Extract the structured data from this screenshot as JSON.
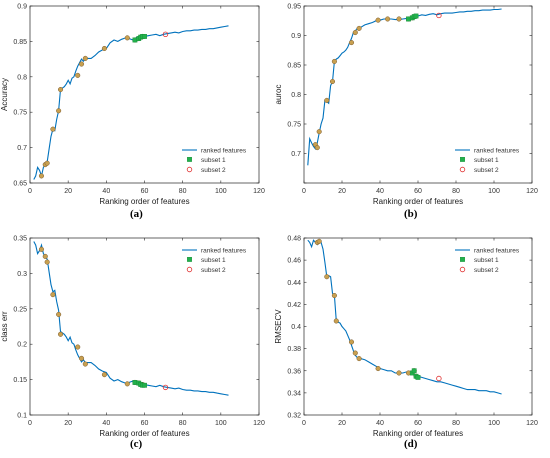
{
  "figure": {
    "panel_labels": [
      "(a)",
      "(b)",
      "(c)",
      "(d)"
    ]
  },
  "colors": {
    "line": "#0072BD",
    "subset1": "#22B14C",
    "subset2_edge": "#E03030",
    "marker_face": "#C8A050",
    "marker_edge": "#7A5A30"
  },
  "chart_data": [
    {
      "type": "line",
      "panel": "(a)",
      "xlabel": "Ranking order of features",
      "ylabel": "Accuracy",
      "xlim": [
        0,
        120
      ],
      "ylim": [
        0.65,
        0.9
      ],
      "xticks": [
        0,
        20,
        40,
        60,
        80,
        100,
        120
      ],
      "yticks": [
        0.65,
        0.7,
        0.75,
        0.8,
        0.85,
        0.9
      ],
      "ytick_labels": [
        "0.65",
        "0.7",
        "0.75",
        "0.8",
        "0.85",
        "0.9"
      ],
      "legend": [
        "ranked features",
        "subset 1",
        "subset 2"
      ],
      "legend_position": "lower-right",
      "series": [
        {
          "name": "ranked features",
          "x": [
            2,
            3,
            4,
            5,
            6,
            7,
            8,
            9,
            10,
            11,
            12,
            13,
            14,
            15,
            16,
            17,
            18,
            19,
            20,
            21,
            22,
            23,
            24,
            25,
            26,
            27,
            28,
            29,
            30,
            32,
            34,
            36,
            38,
            40,
            42,
            44,
            46,
            48,
            50,
            52,
            54,
            56,
            58,
            60,
            62,
            64,
            66,
            68,
            70,
            72,
            74,
            76,
            78,
            80,
            82,
            84,
            86,
            88,
            90,
            92,
            94,
            96,
            98,
            100,
            102,
            104
          ],
          "y": [
            0.655,
            0.66,
            0.672,
            0.668,
            0.66,
            0.672,
            0.676,
            0.68,
            0.698,
            0.716,
            0.726,
            0.724,
            0.74,
            0.752,
            0.782,
            0.784,
            0.786,
            0.79,
            0.795,
            0.79,
            0.798,
            0.8,
            0.808,
            0.815,
            0.82,
            0.825,
            0.822,
            0.826,
            0.826,
            0.826,
            0.83,
            0.835,
            0.838,
            0.84,
            0.848,
            0.852,
            0.85,
            0.853,
            0.855,
            0.854,
            0.852,
            0.856,
            0.857,
            0.857,
            0.858,
            0.859,
            0.86,
            0.858,
            0.86,
            0.861,
            0.862,
            0.863,
            0.862,
            0.864,
            0.865,
            0.865,
            0.866,
            0.866,
            0.867,
            0.867,
            0.868,
            0.868,
            0.869,
            0.87,
            0.871,
            0.872
          ]
        }
      ],
      "selected_points": {
        "x": [
          6,
          8,
          9,
          12,
          15,
          16,
          25,
          27,
          29,
          39,
          51,
          55,
          57,
          59
        ],
        "y": [
          0.66,
          0.676,
          0.678,
          0.726,
          0.752,
          0.782,
          0.802,
          0.818,
          0.826,
          0.84,
          0.855,
          0.852,
          0.854,
          0.857
        ]
      },
      "subset1": {
        "x": [
          55,
          57,
          58,
          59,
          60
        ],
        "y": [
          0.852,
          0.854,
          0.856,
          0.857,
          0.857
        ]
      },
      "subset2": {
        "x": [
          71
        ],
        "y": [
          0.86
        ]
      }
    },
    {
      "type": "line",
      "panel": "(b)",
      "xlabel": "Ranking order of features",
      "ylabel": "auroc",
      "xlim": [
        0,
        120
      ],
      "ylim": [
        0.65,
        0.95
      ],
      "xticks": [
        0,
        20,
        40,
        60,
        80,
        100,
        120
      ],
      "yticks": [
        0.65,
        0.7,
        0.75,
        0.8,
        0.85,
        0.9,
        0.95
      ],
      "ytick_labels": [
        "",
        "0.7",
        "0.75",
        "0.8",
        "0.85",
        "0.9",
        "0.95"
      ],
      "legend": [
        "ranked features",
        "subset 1",
        "subset 2"
      ],
      "legend_position": "lower-right",
      "series": [
        {
          "name": "ranked features",
          "x": [
            2,
            3,
            4,
            5,
            6,
            7,
            8,
            9,
            10,
            11,
            12,
            13,
            14,
            15,
            16,
            17,
            18,
            19,
            20,
            21,
            22,
            23,
            24,
            25,
            26,
            27,
            28,
            29,
            30,
            32,
            34,
            36,
            38,
            40,
            42,
            44,
            46,
            48,
            50,
            52,
            54,
            56,
            58,
            60,
            62,
            64,
            66,
            68,
            70,
            72,
            74,
            76,
            78,
            80,
            82,
            84,
            86,
            88,
            90,
            92,
            94,
            96,
            98,
            100,
            102,
            104
          ],
          "y": [
            0.68,
            0.725,
            0.718,
            0.712,
            0.708,
            0.718,
            0.735,
            0.75,
            0.76,
            0.79,
            0.788,
            0.785,
            0.815,
            0.822,
            0.856,
            0.86,
            0.862,
            0.866,
            0.87,
            0.872,
            0.875,
            0.88,
            0.888,
            0.895,
            0.905,
            0.908,
            0.912,
            0.912,
            0.914,
            0.918,
            0.92,
            0.922,
            0.925,
            0.926,
            0.928,
            0.928,
            0.928,
            0.927,
            0.927,
            0.928,
            0.929,
            0.93,
            0.932,
            0.933,
            0.935,
            0.934,
            0.936,
            0.937,
            0.935,
            0.937,
            0.938,
            0.938,
            0.938,
            0.939,
            0.94,
            0.94,
            0.941,
            0.941,
            0.942,
            0.942,
            0.943,
            0.943,
            0.943,
            0.944,
            0.944,
            0.945
          ]
        }
      ],
      "selected_points": {
        "x": [
          6,
          7,
          8,
          12,
          15,
          16,
          25,
          27,
          29,
          39,
          44,
          50,
          55,
          57
        ],
        "y": [
          0.715,
          0.71,
          0.737,
          0.79,
          0.822,
          0.856,
          0.888,
          0.905,
          0.912,
          0.926,
          0.928,
          0.928,
          0.928,
          0.93
        ]
      },
      "subset1": {
        "x": [
          55,
          57,
          58,
          59
        ],
        "y": [
          0.928,
          0.93,
          0.932,
          0.933
        ]
      },
      "subset2": {
        "x": [
          71
        ],
        "y": [
          0.934
        ]
      }
    },
    {
      "type": "line",
      "panel": "(c)",
      "xlabel": "Ranking order of features",
      "ylabel": "class err",
      "xlim": [
        0,
        120
      ],
      "ylim": [
        0.1,
        0.35
      ],
      "xticks": [
        0,
        20,
        40,
        60,
        80,
        100,
        120
      ],
      "yticks": [
        0.1,
        0.15,
        0.2,
        0.25,
        0.3,
        0.35
      ],
      "ytick_labels": [
        "0.1",
        "0.15",
        "0.2",
        "0.25",
        "0.3",
        "0.35"
      ],
      "legend": [
        "ranked features",
        "subset 1",
        "subset 2"
      ],
      "legend_position": "top-right",
      "series": [
        {
          "name": "ranked features",
          "x": [
            2,
            3,
            4,
            5,
            6,
            7,
            8,
            9,
            10,
            11,
            12,
            13,
            14,
            15,
            16,
            17,
            18,
            19,
            20,
            21,
            22,
            23,
            24,
            25,
            26,
            27,
            28,
            29,
            30,
            32,
            34,
            36,
            38,
            40,
            42,
            44,
            46,
            48,
            50,
            52,
            54,
            56,
            58,
            60,
            62,
            64,
            66,
            68,
            70,
            72,
            74,
            76,
            78,
            80,
            82,
            84,
            86,
            88,
            90,
            92,
            94,
            96,
            98,
            100,
            102,
            104
          ],
          "y": [
            0.345,
            0.34,
            0.328,
            0.332,
            0.34,
            0.328,
            0.324,
            0.32,
            0.302,
            0.284,
            0.274,
            0.276,
            0.26,
            0.248,
            0.218,
            0.216,
            0.214,
            0.21,
            0.205,
            0.21,
            0.202,
            0.2,
            0.192,
            0.185,
            0.18,
            0.175,
            0.178,
            0.174,
            0.174,
            0.174,
            0.17,
            0.165,
            0.162,
            0.16,
            0.152,
            0.148,
            0.15,
            0.147,
            0.145,
            0.146,
            0.148,
            0.144,
            0.143,
            0.143,
            0.142,
            0.141,
            0.14,
            0.142,
            0.14,
            0.139,
            0.138,
            0.137,
            0.138,
            0.136,
            0.135,
            0.135,
            0.134,
            0.134,
            0.133,
            0.133,
            0.132,
            0.132,
            0.131,
            0.13,
            0.129,
            0.128
          ]
        }
      ],
      "selected_points": {
        "x": [
          6,
          8,
          9,
          12,
          15,
          16,
          25,
          27,
          29,
          39,
          51,
          55,
          57,
          59
        ],
        "y": [
          0.334,
          0.324,
          0.316,
          0.27,
          0.242,
          0.214,
          0.196,
          0.18,
          0.172,
          0.157,
          0.144,
          0.146,
          0.145,
          0.143
        ]
      },
      "subset1": {
        "x": [
          55,
          57,
          58,
          59,
          60
        ],
        "y": [
          0.146,
          0.145,
          0.143,
          0.142,
          0.142
        ]
      },
      "subset2": {
        "x": [
          71
        ],
        "y": [
          0.139
        ]
      }
    },
    {
      "type": "line",
      "panel": "(d)",
      "xlabel": "Ranking order of features",
      "ylabel": "RMSECV",
      "xlim": [
        0,
        120
      ],
      "ylim": [
        0.32,
        0.48
      ],
      "xticks": [
        0,
        20,
        40,
        60,
        80,
        100,
        120
      ],
      "yticks": [
        0.32,
        0.34,
        0.36,
        0.38,
        0.4,
        0.42,
        0.44,
        0.46,
        0.48
      ],
      "ytick_labels": [
        "0.32",
        "0.34",
        "0.36",
        "0.38",
        "0.4",
        "0.42",
        "0.44",
        "0.46",
        "0.48"
      ],
      "legend": [
        "ranked features",
        "subset 1",
        "subset 2"
      ],
      "legend_position": "top-right",
      "series": [
        {
          "name": "ranked features",
          "x": [
            2,
            3,
            4,
            5,
            6,
            7,
            8,
            9,
            10,
            11,
            12,
            13,
            14,
            15,
            16,
            17,
            18,
            19,
            20,
            21,
            22,
            23,
            24,
            25,
            26,
            27,
            28,
            29,
            30,
            32,
            34,
            36,
            38,
            40,
            42,
            44,
            46,
            48,
            50,
            52,
            54,
            56,
            58,
            60,
            62,
            64,
            66,
            68,
            70,
            72,
            74,
            76,
            78,
            80,
            82,
            84,
            86,
            88,
            90,
            92,
            94,
            96,
            98,
            100,
            102,
            104
          ],
          "y": [
            0.478,
            0.476,
            0.472,
            0.478,
            0.476,
            0.474,
            0.476,
            0.476,
            0.47,
            0.458,
            0.445,
            0.446,
            0.445,
            0.43,
            0.428,
            0.405,
            0.404,
            0.403,
            0.4,
            0.398,
            0.396,
            0.392,
            0.388,
            0.383,
            0.378,
            0.374,
            0.372,
            0.372,
            0.371,
            0.37,
            0.368,
            0.366,
            0.364,
            0.362,
            0.361,
            0.36,
            0.36,
            0.358,
            0.358,
            0.358,
            0.359,
            0.358,
            0.356,
            0.355,
            0.354,
            0.353,
            0.352,
            0.351,
            0.35,
            0.35,
            0.349,
            0.348,
            0.347,
            0.346,
            0.345,
            0.344,
            0.343,
            0.343,
            0.343,
            0.342,
            0.342,
            0.342,
            0.341,
            0.341,
            0.34,
            0.339
          ]
        }
      ],
      "selected_points": {
        "x": [
          7,
          8,
          12,
          16,
          17,
          25,
          27,
          29,
          39,
          50,
          55,
          58,
          59
        ],
        "y": [
          0.476,
          0.477,
          0.445,
          0.428,
          0.405,
          0.386,
          0.376,
          0.371,
          0.362,
          0.358,
          0.358,
          0.36,
          0.355
        ]
      },
      "subset1": {
        "x": [
          57,
          58,
          59,
          60
        ],
        "y": [
          0.358,
          0.36,
          0.355,
          0.354
        ]
      },
      "subset2": {
        "x": [
          71
        ],
        "y": [
          0.353
        ]
      }
    }
  ]
}
